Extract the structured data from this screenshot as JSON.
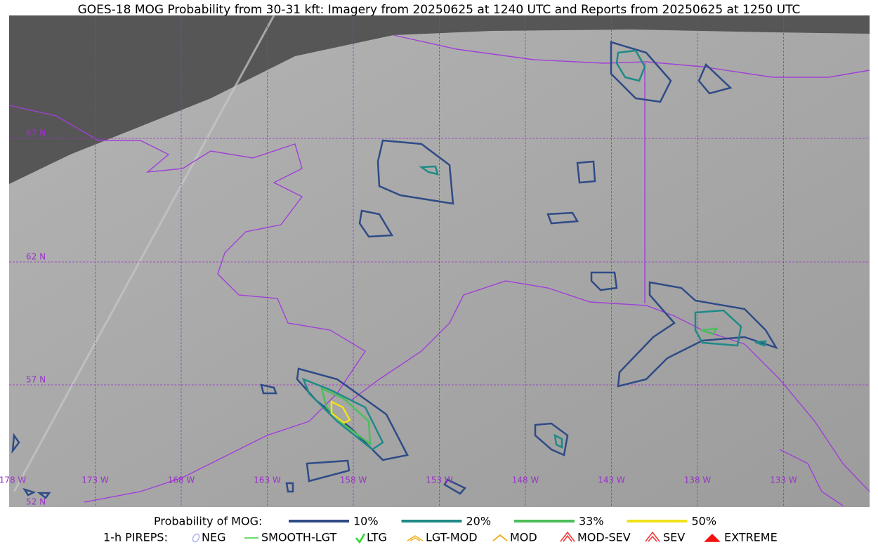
{
  "title": "GOES-18 MOG Probability from 30-31 kft: Imagery from 20250625 at 1240 UTC and Reports from 20250625 at 1250 UTC",
  "latitude_labels": [
    "67 N",
    "62 N",
    "57 N",
    "52 N"
  ],
  "longitude_labels": [
    "178 W",
    "173 W",
    "168 W",
    "163 W",
    "158 W",
    "153 W",
    "148 W",
    "143 W",
    "138 W",
    "133 W"
  ],
  "legend": {
    "probability": {
      "label": "Probability of MOG:",
      "levels": [
        {
          "label": "10%",
          "color": "#2f4b86"
        },
        {
          "label": "20%",
          "color": "#1f8a86"
        },
        {
          "label": "33%",
          "color": "#4cbe5a"
        },
        {
          "label": "50%",
          "color": "#f2e11a"
        }
      ]
    },
    "pireps": {
      "label": "1-h PIREPS:",
      "items": [
        "NEG",
        "SMOOTH-LGT",
        "LTG",
        "LGT-MOD",
        "MOD",
        "MOD-SEV",
        "SEV",
        "EXTREME"
      ]
    }
  }
}
